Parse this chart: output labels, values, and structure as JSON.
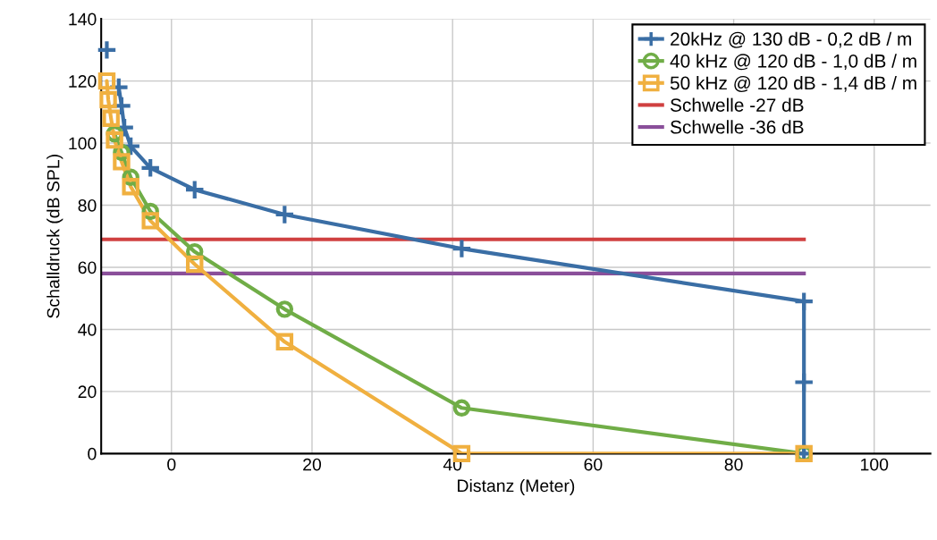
{
  "chart_data": {
    "type": "line",
    "xlabel": "Distanz (Meter)",
    "ylabel": "Schalldruck (dB SPL)",
    "xlim": [
      -10,
      108
    ],
    "xticks": [
      0,
      20,
      40,
      60,
      80,
      100
    ],
    "ylim": [
      0,
      140
    ],
    "yticks": [
      0,
      20,
      40,
      60,
      80,
      100,
      120,
      140
    ],
    "grid": true,
    "legend": "top right",
    "line_style": "solid",
    "series": [
      {
        "name": "20kHz @ 130 dB - 0,2 dB / m",
        "color": "#3a6ea5",
        "marker": "cross",
        "x": [
          -9.2,
          null,
          -7.5,
          -7.1,
          -6.7,
          -5.8,
          -3.0,
          3.3,
          16.1,
          41.3,
          90,
          90,
          90
        ],
        "values": [
          130,
          null,
          118,
          112,
          105,
          99,
          92,
          85,
          77,
          66,
          49,
          23,
          0
        ]
      },
      {
        "name": "40 kHz @ 120 dB - 1,0 dB / m",
        "color": "#70ad47",
        "marker": "circle",
        "x": [
          null,
          null,
          null,
          -8.1,
          -7.1,
          -5.8,
          -3.0,
          3.3,
          16.1,
          41.3,
          90
        ],
        "values": [
          null,
          null,
          null,
          103,
          97,
          89,
          78,
          65,
          46.5,
          14.7,
          0
        ]
      },
      {
        "name": "50 kHz @ 120 dB - 1,4 dB / m",
        "color": "#f0b040",
        "marker": "square",
        "x": [
          -9.2,
          -9.0,
          -8.6,
          -8.1,
          -7.1,
          -5.8,
          -3.0,
          3.3,
          16.1,
          41.3,
          90
        ],
        "values": [
          120,
          114,
          108,
          101,
          94,
          86,
          75,
          61,
          36,
          0,
          0
        ]
      }
    ],
    "ref_lines": [
      {
        "axis": "y",
        "value": 69,
        "label": "Schwelle -27 dB",
        "color": "#d04040",
        "line_style": "solid"
      },
      {
        "axis": "y",
        "value": 58,
        "label": "Schwelle -36 dB",
        "color": "#8a4f9a",
        "line_style": "solid"
      }
    ]
  }
}
